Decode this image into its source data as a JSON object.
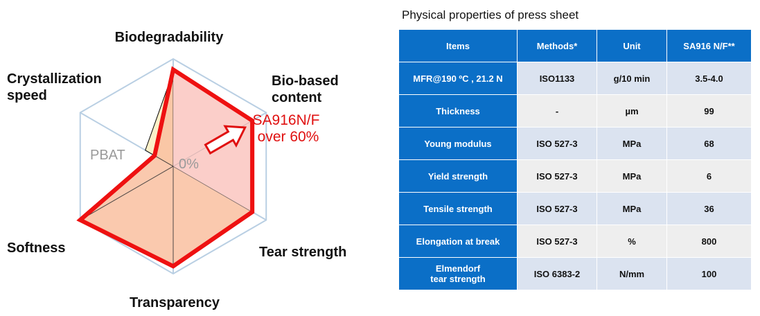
{
  "chart_data": {
    "type": "radar",
    "axes": [
      "Biodegradability",
      "Bio-based content",
      "Tear strength",
      "Transparency",
      "Softness",
      "Crystallization speed"
    ],
    "axis_label_lines": [
      [
        "Biodegradability"
      ],
      [
        "Bio-based",
        "content"
      ],
      [
        "Tear strength"
      ],
      [
        "Transparency"
      ],
      [
        "Softness"
      ],
      [
        "Crystallization",
        "speed"
      ]
    ],
    "range": [
      0,
      1
    ],
    "series": [
      {
        "name": "SA916N/F",
        "values": [
          0.9,
          0.85,
          0.85,
          0.93,
          1.0,
          0.2
        ],
        "color": "#ee1111",
        "fill": "#f9c0a0"
      },
      {
        "name": "PBAT",
        "values": [
          0.88,
          0.0,
          0.0,
          0.0,
          0.0,
          0.3
        ],
        "color": "#f0e0a0",
        "fill": "#fbf0c8"
      }
    ],
    "annotations": {
      "sa916_line1": "SA916N/F",
      "sa916_line2": "over 60%",
      "pbat": "PBAT",
      "zero": "0%"
    }
  },
  "table": {
    "title": "Physical properties of press sheet",
    "headers": [
      "Items",
      "Methods*",
      "Unit",
      "SA916 N/F**"
    ],
    "rows": [
      {
        "item": "MFR@190 ºC , 21.2 N",
        "method": "ISO1133",
        "unit": "g/10 min",
        "value": "3.5-4.0"
      },
      {
        "item": "Thickness",
        "method": "-",
        "unit": "µm",
        "value": "99"
      },
      {
        "item": "Young modulus",
        "method": "ISO 527-3",
        "unit": "MPa",
        "value": "68"
      },
      {
        "item": "Yield strength",
        "method": "ISO 527-3",
        "unit": "MPa",
        "value": "6"
      },
      {
        "item": "Tensile strength",
        "method": "ISO 527-3",
        "unit": "MPa",
        "value": "36"
      },
      {
        "item": "Elongation at break",
        "method": "ISO 527-3",
        "unit": "%",
        "value": "800"
      },
      {
        "item": "Elmendorf tear strength",
        "item_lines": [
          "Elmendorf",
          "tear strength"
        ],
        "method": "ISO 6383-2",
        "unit": "N/mm",
        "value": "100"
      }
    ]
  }
}
